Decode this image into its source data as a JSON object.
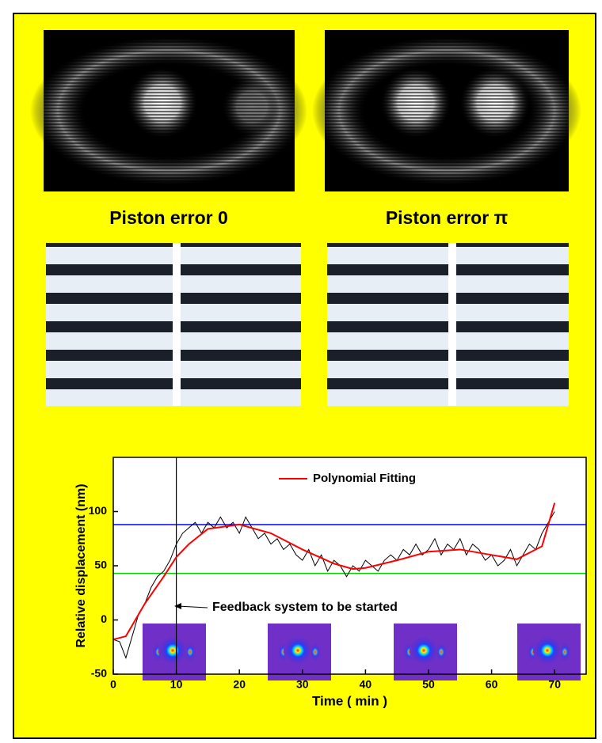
{
  "labels": [
    "Piston error 0",
    "Piston error π"
  ],
  "chart_data": {
    "type": "line",
    "xlabel": "Time ( min )",
    "ylabel": "Relative displacement (nm)",
    "xlim": [
      0,
      75
    ],
    "xticks": [
      0,
      10,
      20,
      30,
      40,
      50,
      60,
      70
    ],
    "ylim": [
      -50,
      150
    ],
    "yticks": [
      -50,
      0,
      50,
      100
    ],
    "series": [
      {
        "name": null,
        "color": "#000000",
        "x": [
          0,
          1,
          2,
          3,
          4,
          5,
          6,
          7,
          8,
          9,
          10,
          11,
          12,
          13,
          14,
          15,
          16,
          17,
          18,
          19,
          20,
          21,
          22,
          23,
          24,
          25,
          26,
          27,
          28,
          29,
          30,
          31,
          32,
          33,
          34,
          35,
          36,
          37,
          38,
          39,
          40,
          41,
          42,
          43,
          44,
          45,
          46,
          47,
          48,
          49,
          50,
          51,
          52,
          53,
          54,
          55,
          56,
          57,
          58,
          59,
          60,
          61,
          62,
          63,
          64,
          65,
          66,
          67,
          68,
          69,
          70
        ],
        "values": [
          -18,
          -20,
          -35,
          -15,
          5,
          15,
          30,
          40,
          45,
          55,
          70,
          80,
          85,
          90,
          80,
          90,
          85,
          95,
          85,
          90,
          80,
          95,
          85,
          75,
          80,
          70,
          75,
          65,
          70,
          60,
          55,
          65,
          50,
          60,
          45,
          55,
          50,
          40,
          50,
          45,
          55,
          50,
          45,
          55,
          60,
          55,
          65,
          60,
          70,
          60,
          65,
          75,
          60,
          70,
          65,
          75,
          60,
          70,
          65,
          55,
          60,
          50,
          55,
          65,
          50,
          60,
          70,
          65,
          80,
          90,
          100
        ]
      },
      {
        "name": "Polynomial Fitting",
        "color": "#ff0000",
        "x": [
          0,
          2,
          5,
          8,
          10,
          12,
          15,
          20,
          25,
          30,
          35,
          38,
          40,
          45,
          50,
          55,
          60,
          64,
          68,
          70
        ],
        "values": [
          -18,
          -15,
          15,
          40,
          58,
          70,
          84,
          88,
          80,
          65,
          52,
          47,
          48,
          55,
          63,
          65,
          60,
          56,
          68,
          108
        ]
      }
    ],
    "hlines": [
      {
        "value": 88,
        "color": "#0000ff"
      },
      {
        "value": 43,
        "color": "#00cc00"
      }
    ],
    "vline": 10,
    "annotation": "Feedback system to be started"
  }
}
